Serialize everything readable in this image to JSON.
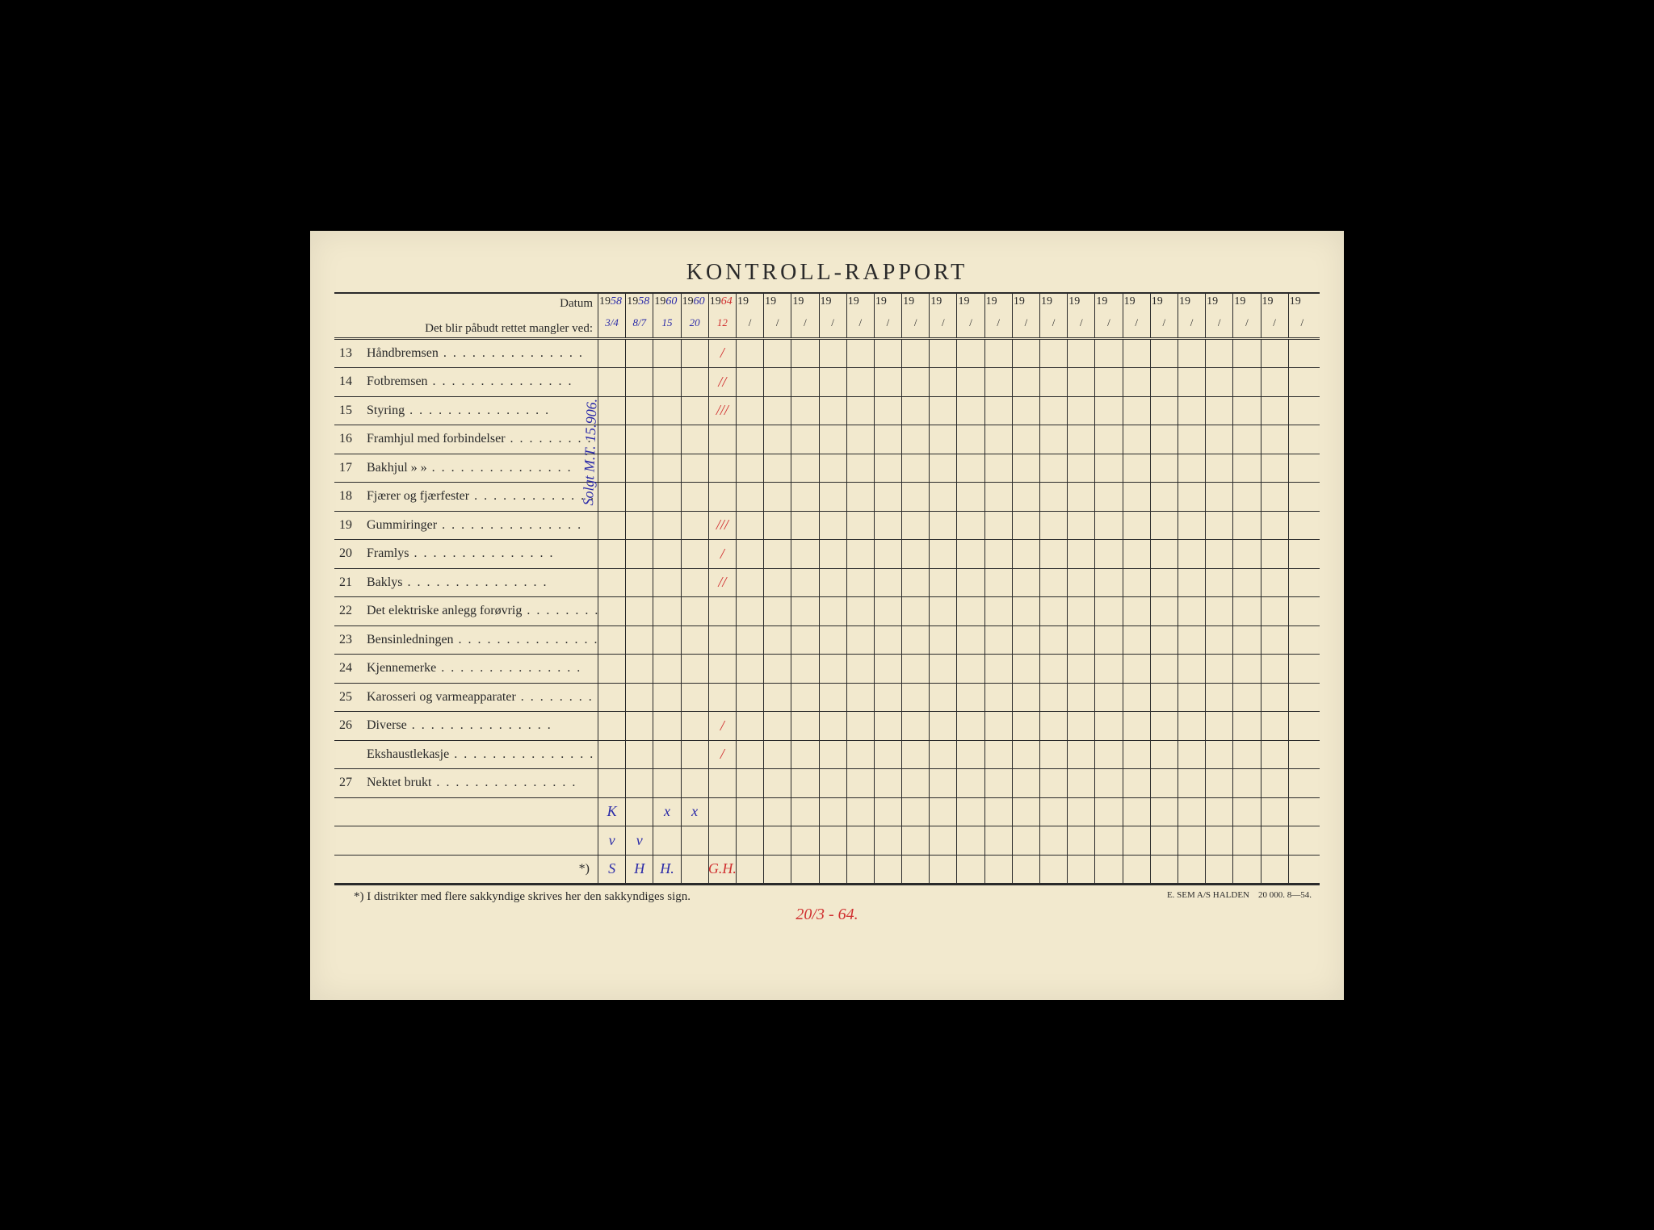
{
  "title": "KONTROLL-RAPPORT",
  "header": {
    "datum_label": "Datum",
    "sub_label": "Det blir påbudt rettet mangler ved:"
  },
  "columns": {
    "count": 26,
    "year_prefix": "19",
    "slash": "/",
    "handwritten_years": [
      "58",
      "58",
      "60",
      "60",
      "64"
    ],
    "handwritten_sub": [
      "3/4",
      "8/7",
      "15",
      "20",
      "12"
    ],
    "handwritten_colors": [
      "blue",
      "blue",
      "blue",
      "blue",
      "red"
    ]
  },
  "rows": [
    {
      "num": "13",
      "label": "Håndbremsen",
      "marks": {
        "4": {
          "text": "/",
          "color": "red"
        }
      }
    },
    {
      "num": "14",
      "label": "Fotbremsen",
      "marks": {
        "4": {
          "text": "//",
          "color": "red"
        }
      }
    },
    {
      "num": "15",
      "label": "Styring",
      "marks": {
        "4": {
          "text": "///",
          "color": "red"
        }
      }
    },
    {
      "num": "16",
      "label": "Framhjul med forbindelser",
      "marks": {}
    },
    {
      "num": "17",
      "label": "Bakhjul        »             »",
      "marks": {}
    },
    {
      "num": "18",
      "label": "Fjærer og fjærfester",
      "marks": {}
    },
    {
      "num": "19",
      "label": "Gummiringer",
      "marks": {
        "4": {
          "text": "///",
          "color": "red"
        }
      }
    },
    {
      "num": "20",
      "label": "Framlys",
      "marks": {
        "4": {
          "text": "/",
          "color": "red"
        }
      }
    },
    {
      "num": "21",
      "label": "Baklys",
      "marks": {
        "4": {
          "text": "//",
          "color": "red"
        }
      }
    },
    {
      "num": "22",
      "label": "Det elektriske anlegg forøvrig",
      "marks": {}
    },
    {
      "num": "23",
      "label": "Bensinledningen",
      "marks": {}
    },
    {
      "num": "24",
      "label": "Kjennemerke",
      "marks": {}
    },
    {
      "num": "25",
      "label": "Karosseri og varmeapparater",
      "marks": {}
    },
    {
      "num": "26",
      "label": "Diverse",
      "marks": {
        "4": {
          "text": "/",
          "color": "red"
        }
      }
    },
    {
      "num": "",
      "label": "Ekshaustlekasje",
      "marks": {
        "4": {
          "text": "/",
          "color": "red"
        }
      }
    },
    {
      "num": "27",
      "label": "Nektet brukt",
      "marks": {}
    },
    {
      "num": "",
      "label": "",
      "marks": {
        "0": {
          "text": "K",
          "color": "blue"
        },
        "2": {
          "text": "x",
          "color": "blue"
        },
        "3": {
          "text": "x",
          "color": "blue"
        }
      }
    },
    {
      "num": "",
      "label": "",
      "marks": {
        "0": {
          "text": "v",
          "color": "blue"
        },
        "1": {
          "text": "v",
          "color": "blue"
        }
      }
    },
    {
      "num": "",
      "label": "*)",
      "star": true,
      "marks": {
        "0": {
          "text": "S",
          "color": "blue"
        },
        "1": {
          "text": "H",
          "color": "blue"
        },
        "2": {
          "text": "H.",
          "color": "blue"
        },
        "4": {
          "text": "G.H.",
          "color": "red"
        }
      }
    }
  ],
  "vertical_note": "Solgt M.T. 15.906.",
  "footnote": {
    "left": "*) I distrikter med flere sakkyndige skrives her den sakkyndiges sign.",
    "right_line1": "E. SEM A/S HALDEN",
    "right_line2": "20 000.   8—54."
  },
  "bottom_handwritten": "20/3 - 64.",
  "colors": {
    "paper": "#f2e9ce",
    "ink": "#2a2a2a",
    "blue_pen": "#2a2aa8",
    "red_pen": "#d03030"
  }
}
